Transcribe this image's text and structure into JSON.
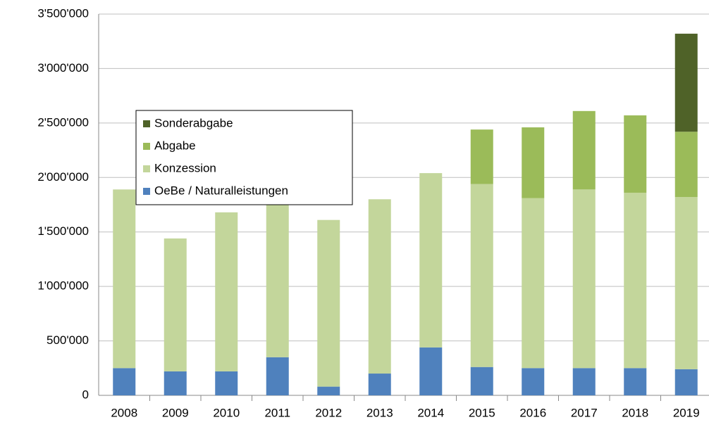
{
  "chart_data": {
    "type": "stacked_bar",
    "categories": [
      "2008",
      "2009",
      "2010",
      "2011",
      "2012",
      "2013",
      "2014",
      "2015",
      "2016",
      "2017",
      "2018",
      "2019"
    ],
    "series": [
      {
        "name": "OeBe / Naturalleistungen",
        "color": "#4f81bd",
        "values": [
          250000,
          220000,
          220000,
          350000,
          80000,
          200000,
          440000,
          260000,
          250000,
          250000,
          250000,
          240000
        ]
      },
      {
        "name": "Konzession",
        "color": "#c3d69b",
        "values": [
          1640000,
          1220000,
          1460000,
          1420000,
          1530000,
          1600000,
          1600000,
          1680000,
          1560000,
          1640000,
          1610000,
          1580000
        ]
      },
      {
        "name": "Abgabe",
        "color": "#9bbb59",
        "values": [
          0,
          0,
          0,
          0,
          0,
          0,
          0,
          500000,
          650000,
          720000,
          710000,
          600000
        ]
      },
      {
        "name": "Sonderabgabe",
        "color": "#4f6228",
        "values": [
          0,
          0,
          0,
          0,
          0,
          0,
          0,
          0,
          0,
          0,
          0,
          900000
        ]
      }
    ],
    "ylim": [
      0,
      3500000
    ],
    "yticks": [
      0,
      {
        "value": 500000,
        "label": "500'000"
      },
      {
        "value": 1000000,
        "label": "1'000'000"
      },
      {
        "value": 1500000,
        "label": "1'500'000"
      },
      {
        "value": 2000000,
        "label": "2'000'000"
      },
      {
        "value": 2500000,
        "label": "2'500'000"
      },
      {
        "value": 3000000,
        "label": "3'000'000"
      },
      {
        "value": 3500000,
        "label": "3'500'000"
      }
    ],
    "grid": true,
    "legend": "upper left"
  }
}
